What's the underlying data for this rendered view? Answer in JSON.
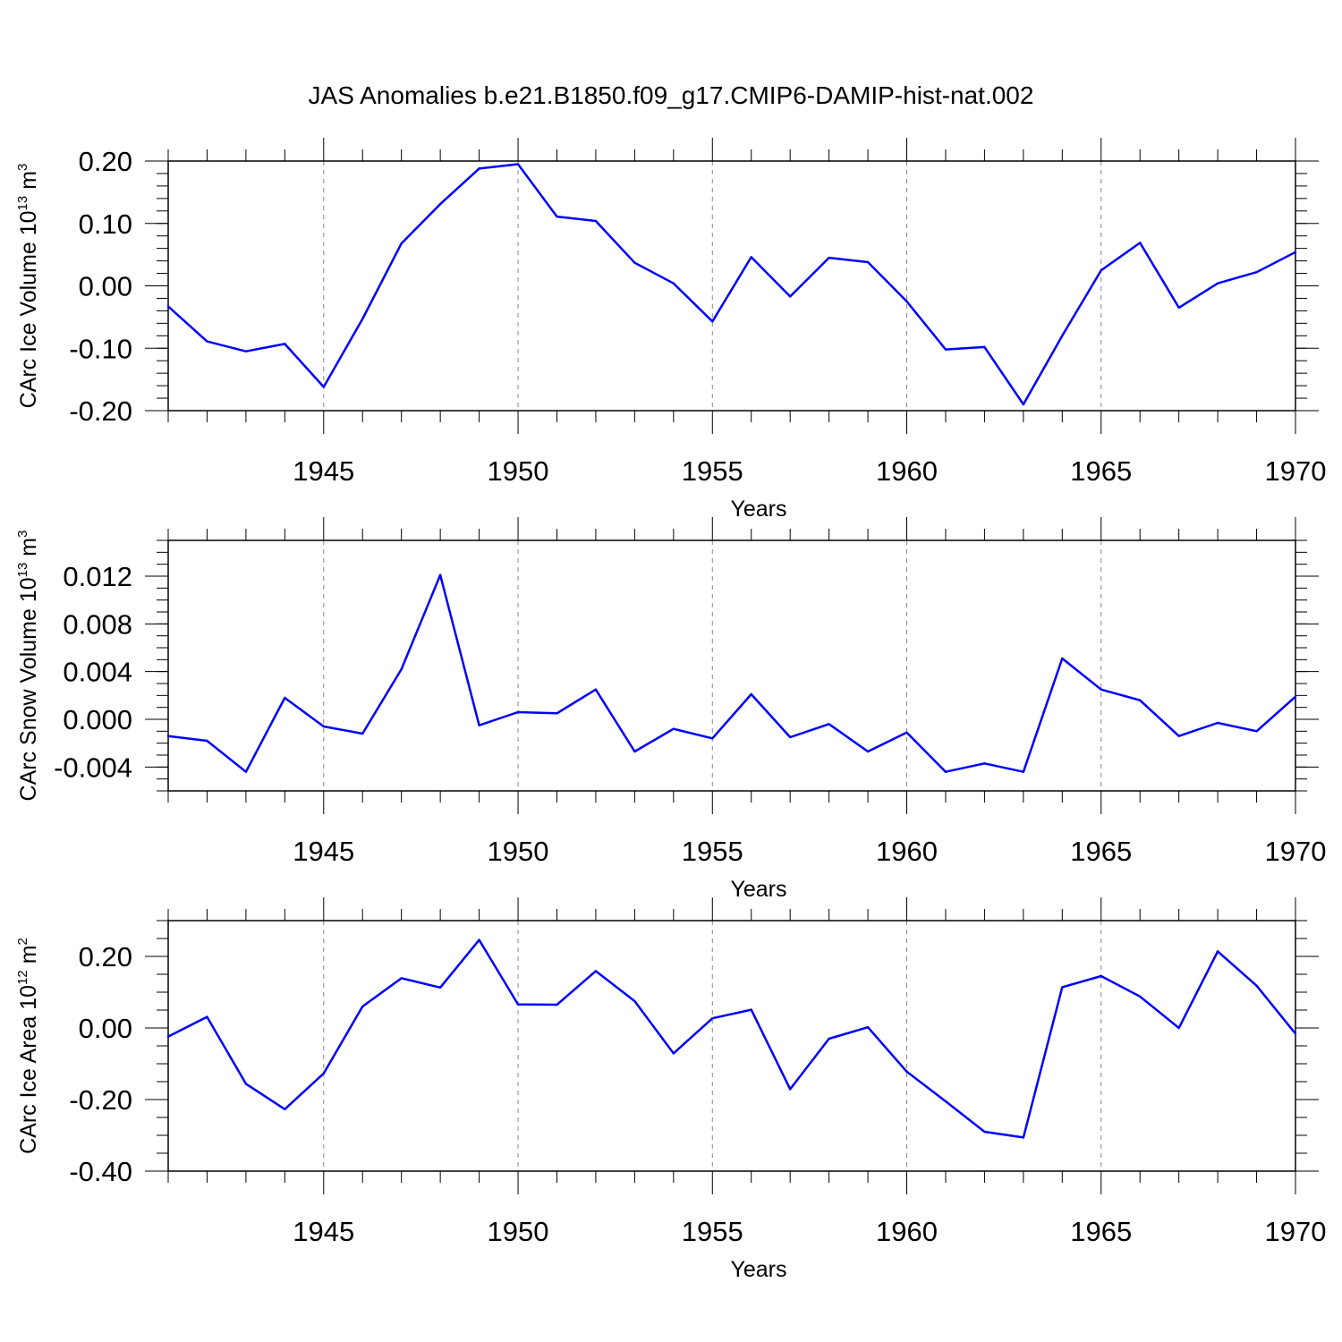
{
  "title": "JAS Anomalies b.e21.B1850.f09_g17.CMIP6-DAMIP-hist-nat.002",
  "colors": {
    "series": "#0000ff",
    "axis": "#000000",
    "grid": "#888888"
  },
  "chart_data": [
    {
      "type": "line",
      "name": "ice-volume",
      "ylabel": "CArc Ice Volume 10",
      "ylabel_exp": "13",
      "ylabel_unit": " m",
      "ylabel_unit_exp": "3",
      "xlabel": "Years",
      "xlim": [
        1941,
        1970
      ],
      "ylim": [
        -0.2,
        0.2
      ],
      "yticks": [
        -0.2,
        -0.1,
        0.0,
        0.1,
        0.2
      ],
      "ytick_labels": [
        "-0.20",
        "-0.10",
        "0.00",
        "0.10",
        "0.20"
      ],
      "yminor_step": 0.02,
      "xticks": [
        1945,
        1950,
        1955,
        1960,
        1965,
        1970
      ],
      "xtick_labels": [
        "1945",
        "1950",
        "1955",
        "1960",
        "1965",
        "1970"
      ],
      "x": [
        1941,
        1942,
        1943,
        1944,
        1945,
        1946,
        1947,
        1948,
        1949,
        1950,
        1951,
        1952,
        1953,
        1954,
        1955,
        1956,
        1957,
        1958,
        1959,
        1960,
        1961,
        1962,
        1963,
        1964,
        1965,
        1966,
        1967,
        1968,
        1969,
        1970
      ],
      "y": [
        -0.033,
        -0.089,
        -0.105,
        -0.093,
        -0.162,
        -0.053,
        0.068,
        0.131,
        0.188,
        0.195,
        0.111,
        0.104,
        0.037,
        0.004,
        -0.057,
        0.046,
        -0.017,
        0.045,
        0.038,
        -0.025,
        -0.102,
        -0.098,
        -0.19,
        -0.08,
        0.025,
        0.069,
        -0.035,
        0.004,
        0.022,
        0.054
      ]
    },
    {
      "type": "line",
      "name": "snow-volume",
      "ylabel": "CArc Snow Volume 10",
      "ylabel_exp": "13",
      "ylabel_unit": " m",
      "ylabel_unit_exp": "3",
      "xlabel": "Years",
      "xlim": [
        1941,
        1970
      ],
      "ylim": [
        -0.006,
        0.015
      ],
      "yticks": [
        -0.004,
        0.0,
        0.004,
        0.008,
        0.012
      ],
      "ytick_labels": [
        "-0.004",
        "0.000",
        "0.004",
        "0.008",
        "0.012"
      ],
      "yminor_step": 0.001,
      "xticks": [
        1945,
        1950,
        1955,
        1960,
        1965,
        1970
      ],
      "xtick_labels": [
        "1945",
        "1950",
        "1955",
        "1960",
        "1965",
        "1970"
      ],
      "x": [
        1941,
        1942,
        1943,
        1944,
        1945,
        1946,
        1947,
        1948,
        1949,
        1950,
        1951,
        1952,
        1953,
        1954,
        1955,
        1956,
        1957,
        1958,
        1959,
        1960,
        1961,
        1962,
        1963,
        1964,
        1965,
        1966,
        1967,
        1968,
        1969,
        1970
      ],
      "y": [
        -0.0014,
        -0.0018,
        -0.0044,
        0.0018,
        -0.0006,
        -0.0012,
        0.0042,
        0.0121,
        -0.0005,
        0.0006,
        0.0005,
        0.0025,
        -0.0027,
        -0.0008,
        -0.0016,
        0.0021,
        -0.0015,
        -0.0004,
        -0.0027,
        -0.0011,
        -0.0044,
        -0.0037,
        -0.0044,
        0.0051,
        0.0025,
        0.0016,
        -0.0014,
        -0.0003,
        -0.001,
        0.0019
      ]
    },
    {
      "type": "line",
      "name": "ice-area",
      "ylabel": "CArc Ice Area 10",
      "ylabel_exp": "12",
      "ylabel_unit": " m",
      "ylabel_unit_exp": "2",
      "xlabel": "Years",
      "xlim": [
        1941,
        1970
      ],
      "ylim": [
        -0.4,
        0.3
      ],
      "yticks": [
        -0.4,
        -0.2,
        0.0,
        0.2
      ],
      "ytick_labels": [
        "-0.40",
        "-0.20",
        "0.00",
        "0.20"
      ],
      "yminor_step": 0.05,
      "xticks": [
        1945,
        1950,
        1955,
        1960,
        1965,
        1970
      ],
      "xtick_labels": [
        "1945",
        "1950",
        "1955",
        "1960",
        "1965",
        "1970"
      ],
      "x": [
        1941,
        1942,
        1943,
        1944,
        1945,
        1946,
        1947,
        1948,
        1949,
        1950,
        1951,
        1952,
        1953,
        1954,
        1955,
        1956,
        1957,
        1958,
        1959,
        1960,
        1961,
        1962,
        1963,
        1964,
        1965,
        1966,
        1967,
        1968,
        1969,
        1970
      ],
      "y": [
        -0.024,
        0.031,
        -0.156,
        -0.227,
        -0.127,
        0.06,
        0.139,
        0.113,
        0.246,
        0.066,
        0.065,
        0.159,
        0.075,
        -0.071,
        0.027,
        0.051,
        -0.171,
        -0.03,
        0.002,
        -0.122,
        -0.205,
        -0.29,
        -0.306,
        0.114,
        0.145,
        0.088,
        0.0,
        0.214,
        0.118,
        -0.016
      ]
    }
  ]
}
